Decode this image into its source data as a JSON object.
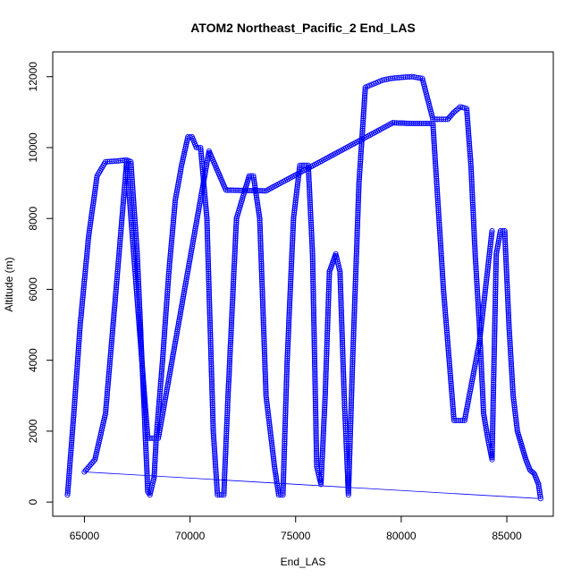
{
  "chart_data": {
    "type": "scatter",
    "title": "ATOM2 Northeast_Pacific_2 End_LAS",
    "xlabel": "End_LAS",
    "ylabel": "Altitude (m)",
    "xlim": [
      63500,
      87200
    ],
    "ylim": [
      -400,
      12700
    ],
    "xticks": [
      65000,
      70000,
      75000,
      80000,
      85000
    ],
    "xtick_labels": [
      "65000",
      "70000",
      "75000",
      "80000",
      "85000"
    ],
    "yticks": [
      0,
      2000,
      4000,
      6000,
      8000,
      10000,
      12000
    ],
    "ytick_labels": [
      "0",
      "2000",
      "4000",
      "6000",
      "8000",
      "10000",
      "12000"
    ],
    "grid": false,
    "legend": "none",
    "marker": "open-circle",
    "connect_points": true,
    "colors": {
      "series": "#0000ff",
      "axes": "#000000",
      "background": "#ffffff"
    },
    "series": [
      {
        "x": [
          64200,
          64500,
          64800,
          65200,
          65600,
          66000,
          66500,
          67000,
          67200,
          67500,
          67800,
          68000,
          68100,
          68300,
          68400,
          68700,
          69000,
          69300,
          69600,
          69900,
          70100,
          70300,
          70500,
          70800,
          71100,
          71300,
          71600,
          71800,
          72200,
          72600,
          72800,
          73000,
          73300,
          73600,
          74000,
          74200,
          74400,
          74600,
          74900,
          75200,
          75400,
          75600,
          75800,
          76000,
          76200,
          76400,
          76600,
          76900,
          77100,
          77300,
          77500,
          77700,
          78000,
          78300,
          78500,
          78700,
          78900,
          79100,
          79500,
          80000,
          80500,
          81000,
          81500,
          82000,
          82200,
          82500,
          82800,
          83100,
          83300,
          83500,
          83700,
          83900,
          84100,
          84300,
          84500,
          84700,
          84900,
          85100,
          85300,
          85500,
          85700,
          85900,
          86100,
          86300,
          86500,
          86600
        ],
        "y": [
          200,
          2500,
          5000,
          7500,
          9200,
          9600,
          9620,
          9650,
          9600,
          7000,
          3000,
          300,
          200,
          700,
          1800,
          4000,
          6500,
          8500,
          9500,
          10300,
          10300,
          10000,
          10000,
          8000,
          2000,
          200,
          200,
          3000,
          8000,
          8800,
          9200,
          9200,
          8000,
          3000,
          1000,
          200,
          200,
          4000,
          8000,
          9500,
          9500,
          9500,
          7000,
          1000,
          500,
          3000,
          6500,
          7000,
          6500,
          3000,
          200,
          4000,
          9000,
          11700,
          11750,
          11800,
          11850,
          11900,
          11950,
          11980,
          12000,
          11950,
          10800,
          10800,
          10800,
          11000,
          11150,
          11100,
          9500,
          7000,
          5000,
          2500,
          1800,
          1200,
          7000,
          7650,
          7650,
          5000,
          3000,
          2000,
          1600,
          1200,
          900,
          800,
          500,
          100
        ],
        "y_return_track": [
          [
            65000,
            850
          ],
          [
            65500,
            1200
          ],
          [
            66000,
            2500
          ],
          [
            66500,
            6000
          ],
          [
            67000,
            9600
          ],
          [
            68000,
            1800
          ],
          [
            68500,
            1800
          ],
          [
            70900,
            9900
          ],
          [
            71700,
            8800
          ],
          [
            73600,
            8780
          ],
          [
            79600,
            10700
          ],
          [
            80500,
            10680
          ],
          [
            81500,
            10680
          ],
          [
            82000,
            6000
          ],
          [
            82500,
            2300
          ],
          [
            83000,
            2300
          ],
          [
            83700,
            4500
          ],
          [
            84300,
            7650
          ]
        ]
      }
    ]
  }
}
